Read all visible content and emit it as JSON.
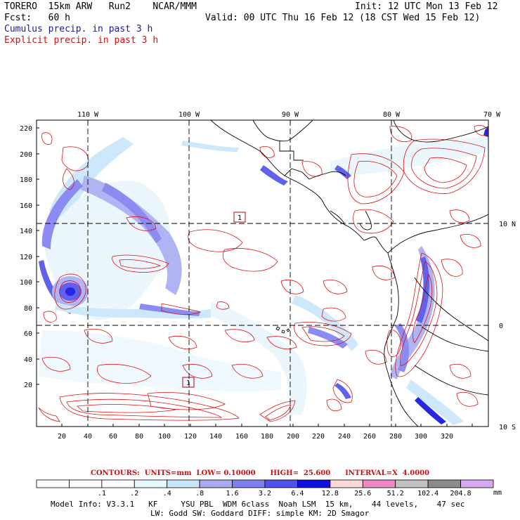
{
  "header": {
    "model": "TORERO  15km ARW   Run2    NCAR/MMM",
    "fcst": "Fcst:   60 h",
    "init": "Init: 12 UTC Mon 13 Feb 12",
    "valid": "Valid: 00 UTC Thu 16 Feb 12 (18 CST Wed 15 Feb 12)",
    "field1": "Cumulus precip. in past 3 h",
    "field2": "Explicit precip. in past 3 h"
  },
  "map": {
    "lon_labels": [
      "110 W",
      "100 W",
      "90 W",
      "80 W",
      "70 W"
    ],
    "lat_labels": [
      "10 N",
      "0",
      "10 S"
    ],
    "y_ticks": [
      "220",
      "200",
      "180",
      "160",
      "140",
      "120",
      "100",
      "80",
      "60",
      "40",
      "20"
    ],
    "x_ticks": [
      "20",
      "40",
      "60",
      "80",
      "100",
      "120",
      "140",
      "160",
      "180",
      "200",
      "220",
      "240",
      "260",
      "280",
      "300",
      "320"
    ],
    "box_labels": [
      "1",
      "1"
    ]
  },
  "contours": {
    "text": "CONTOURS:  UNITS=mm  LOW= 0.10000      HIGH=  25.600      INTERVAL=X  4.0000"
  },
  "colorbar": {
    "labels": [
      ".1",
      ".2",
      ".4",
      ".8",
      "1.6",
      "3.2",
      "6.4",
      "12.8",
      "25.6",
      "51.2",
      "102.4",
      "204.8"
    ],
    "unit": "mm",
    "colors": [
      "#ffffff",
      "#ffffff",
      "#ffffff",
      "#e8f8ff",
      "#c8e6fa",
      "#a8acf2",
      "#7f7ff0",
      "#5050ea",
      "#1010e0",
      "#ffd8d8",
      "#f088c8",
      "#c0c0c0",
      "#8c8c8c",
      "#d8a8f0"
    ]
  },
  "model_info": {
    "line1": "Model Info: V3.3.1   KF     YSU PBL  WDM 6class  Noah LSM  15 km,    44 levels,    47 sec",
    "line2": "LW: Godd SW: Goddard DIFF: simple KM: 2D Smagor"
  }
}
